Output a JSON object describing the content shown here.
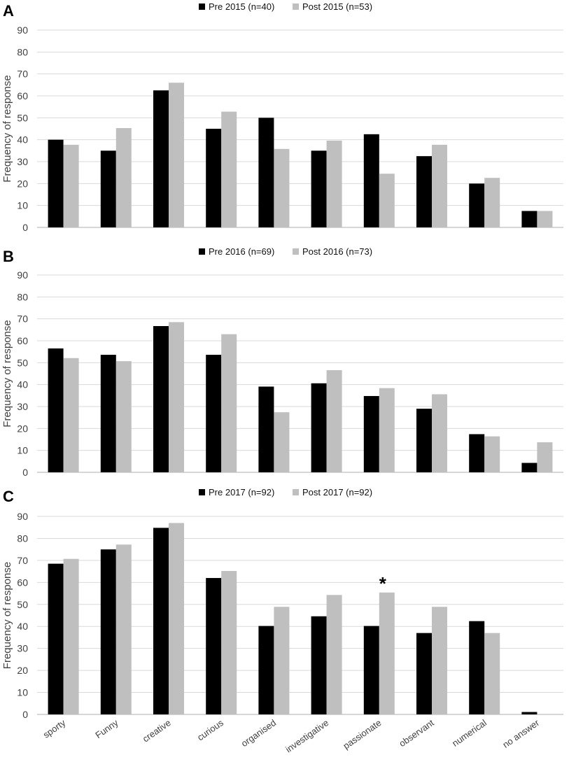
{
  "colors": {
    "pre": "#000000",
    "post": "#bfbfbf",
    "grid": "#d9d9d9",
    "axis": "#bfbfbf"
  },
  "chart_data": [
    {
      "type": "bar",
      "panel": "A",
      "ylabel": "Frequency of response",
      "ylim": [
        0,
        90
      ],
      "yticks": [
        0,
        10,
        20,
        30,
        40,
        50,
        60,
        70,
        80,
        90
      ],
      "grid": true,
      "legend_position": "top-center",
      "categories": [
        "sporty",
        "Funny",
        "creative",
        "curious",
        "organised",
        "investigative",
        "passionate",
        "observant",
        "numerical",
        "no answer"
      ],
      "show_category_labels": false,
      "series": [
        {
          "name": "Pre 2015 (n=40)",
          "color": "#000000",
          "values": [
            40,
            35,
            62.5,
            45,
            50,
            35,
            42.5,
            32.5,
            20,
            7.5
          ]
        },
        {
          "name": "Post 2015 (n=53)",
          "color": "#bfbfbf",
          "values": [
            37.7,
            45.3,
            66,
            52.8,
            35.8,
            39.6,
            24.5,
            37.7,
            22.6,
            7.5
          ]
        }
      ],
      "annotations": []
    },
    {
      "type": "bar",
      "panel": "B",
      "ylabel": "Frequency of response",
      "ylim": [
        0,
        90
      ],
      "yticks": [
        0,
        10,
        20,
        30,
        40,
        50,
        60,
        70,
        80,
        90
      ],
      "grid": true,
      "legend_position": "top-center",
      "categories": [
        "sporty",
        "Funny",
        "creative",
        "curious",
        "organised",
        "investigative",
        "passionate",
        "observant",
        "numerical",
        "no answer"
      ],
      "show_category_labels": false,
      "series": [
        {
          "name": "Pre 2016 (n=69)",
          "color": "#000000",
          "values": [
            56.5,
            53.6,
            66.7,
            53.6,
            39.1,
            40.6,
            34.8,
            29,
            17.4,
            4.3
          ]
        },
        {
          "name": "Post 2016 (n=73)",
          "color": "#bfbfbf",
          "values": [
            52.1,
            50.7,
            68.5,
            63,
            27.4,
            46.6,
            38.4,
            35.6,
            16.4,
            13.7
          ]
        }
      ],
      "annotations": []
    },
    {
      "type": "bar",
      "panel": "C",
      "ylabel": "Frequency of response",
      "ylim": [
        0,
        90
      ],
      "yticks": [
        0,
        10,
        20,
        30,
        40,
        50,
        60,
        70,
        80,
        90
      ],
      "grid": true,
      "legend_position": "top-center",
      "categories": [
        "sporty",
        "Funny",
        "creative",
        "curious",
        "organised",
        "investigative",
        "passionate",
        "observant",
        "numerical",
        "no answer"
      ],
      "show_category_labels": true,
      "series": [
        {
          "name": "Pre 2017 (n=92)",
          "color": "#000000",
          "values": [
            68.5,
            75,
            84.8,
            62,
            40.2,
            44.6,
            40.2,
            37,
            42.4,
            1.1
          ]
        },
        {
          "name": "Post 2017 (n=92)",
          "color": "#bfbfbf",
          "values": [
            70.7,
            77.2,
            87,
            65.2,
            48.9,
            54.3,
            55.4,
            48.9,
            37,
            0
          ]
        }
      ],
      "annotations": [
        {
          "text": "*",
          "category": "passionate",
          "series": 1
        }
      ]
    }
  ]
}
